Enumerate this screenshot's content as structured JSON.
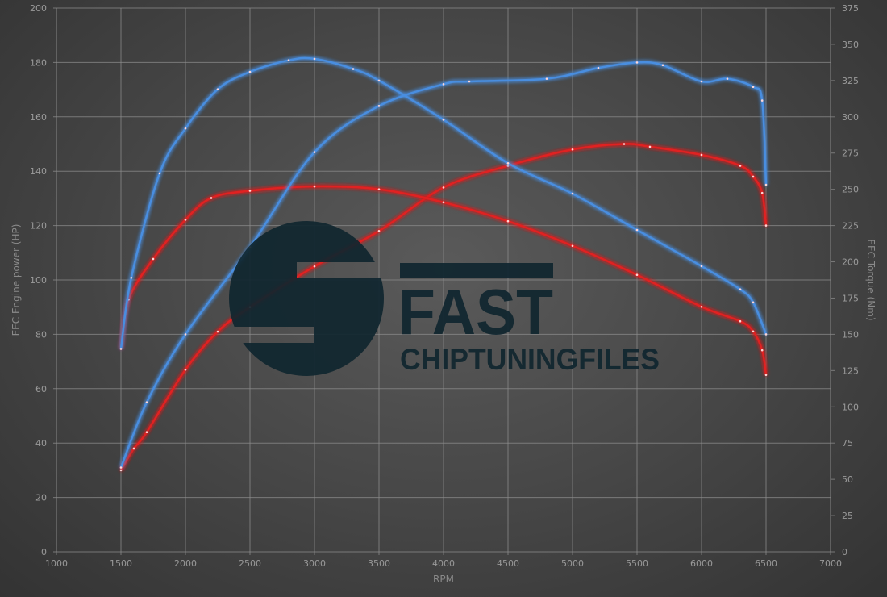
{
  "chart_data": {
    "type": "line",
    "xlabel": "RPM",
    "ylabel_left": "EEC Engine power (HP)",
    "ylabel_right": "EEC Torque (Nm)",
    "xlim": [
      1000,
      7000
    ],
    "ylim_left": [
      0,
      200
    ],
    "ylim_right": [
      0,
      375
    ],
    "x_ticks": [
      1000,
      1500,
      2000,
      2500,
      3000,
      3500,
      4000,
      4500,
      5000,
      5500,
      6000,
      6500,
      7000
    ],
    "y_left_ticks": [
      0,
      20,
      40,
      60,
      80,
      100,
      120,
      140,
      160,
      180,
      200
    ],
    "y_right_ticks": [
      0,
      25,
      50,
      75,
      100,
      125,
      150,
      175,
      200,
      225,
      250,
      275,
      300,
      325,
      350,
      375
    ],
    "grid": true,
    "colors": {
      "stock": "#e02020",
      "tuned": "#4a8ee0"
    },
    "series": [
      {
        "axis": "left",
        "group": "stock",
        "x": [
          1500,
          1600,
          1700,
          2000,
          2250,
          2500,
          3000,
          3500,
          4000,
          4500,
          5000,
          5400,
          5600,
          6000,
          6300,
          6400,
          6470,
          6500
        ],
        "values": [
          30,
          38,
          44,
          67,
          81,
          90,
          105,
          118,
          134,
          142,
          148,
          150,
          149,
          146,
          142,
          138,
          132,
          120
        ]
      },
      {
        "axis": "right",
        "group": "stock",
        "x": [
          1500,
          1560,
          1750,
          2000,
          2200,
          2500,
          3000,
          3500,
          4000,
          4500,
          5000,
          5500,
          6000,
          6300,
          6400,
          6470,
          6500
        ],
        "values": [
          140,
          174,
          202,
          229,
          244,
          249,
          252,
          250,
          241,
          228,
          211,
          191,
          169,
          159,
          152,
          139,
          122
        ]
      },
      {
        "axis": "left",
        "group": "tuned",
        "x": [
          1500,
          1700,
          2000,
          2500,
          3000,
          3500,
          4000,
          4200,
          4800,
          5200,
          5500,
          5700,
          6000,
          6200,
          6400,
          6470,
          6500
        ],
        "values": [
          31,
          55,
          80,
          112,
          147,
          164,
          172,
          173,
          174,
          178,
          180,
          179,
          173,
          174,
          171,
          166,
          135
        ]
      },
      {
        "axis": "right",
        "group": "tuned",
        "x": [
          1500,
          1580,
          1800,
          2000,
          2250,
          2500,
          2800,
          3000,
          3300,
          3500,
          4000,
          4500,
          5000,
          5500,
          6000,
          6300,
          6400,
          6500
        ],
        "values": [
          140,
          189,
          261,
          292,
          319,
          331,
          339,
          340,
          333,
          325,
          298,
          268,
          247,
          222,
          197,
          181,
          172,
          150
        ]
      }
    ]
  },
  "logo": {
    "word1": "FAST",
    "word2": "CHIPTUNINGFILES"
  }
}
